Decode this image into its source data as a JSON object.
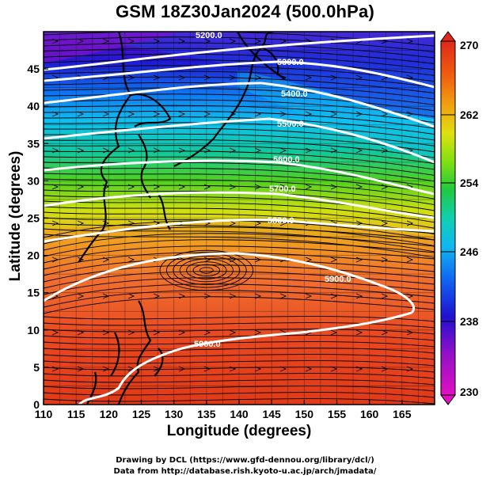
{
  "title": "GSM 18Z30Jan2024 (500.0hPa)",
  "xlabel": "Longitude (degrees)",
  "ylabel": "Latitude  (degrees)",
  "credits": [
    "Drawing by DCL (https://www.gfd-dennou.org/library/dcl/)",
    "Data from http://database.rish.kyoto-u.ac.jp/arch/jmadata/"
  ],
  "map": {
    "lon_range": [
      110,
      170
    ],
    "lat_range": [
      0,
      50
    ],
    "lon_ticks": [
      "110",
      "115",
      "120",
      "125",
      "130",
      "135",
      "140",
      "145",
      "150",
      "155",
      "160",
      "165"
    ],
    "lat_ticks": [
      "0",
      "5",
      "10",
      "15",
      "20",
      "25",
      "30",
      "35",
      "40",
      "45"
    ],
    "contour_labels": [
      "5200.0",
      "5300.0",
      "5400.0",
      "5500.0",
      "5600.0",
      "5700.0",
      "5800.0",
      "5900.0",
      "5900.0"
    ],
    "colorbar": {
      "min_label": "230",
      "max_label": "270",
      "tick_labels": [
        "238",
        "246",
        "254",
        "262"
      ],
      "colors": [
        "#e010c0",
        "#8a10c8",
        "#2010d0",
        "#1060f0",
        "#10b0f0",
        "#10d0c0",
        "#20c840",
        "#70e010",
        "#d8e010",
        "#f0a010",
        "#f06010",
        "#e02818"
      ]
    }
  }
}
